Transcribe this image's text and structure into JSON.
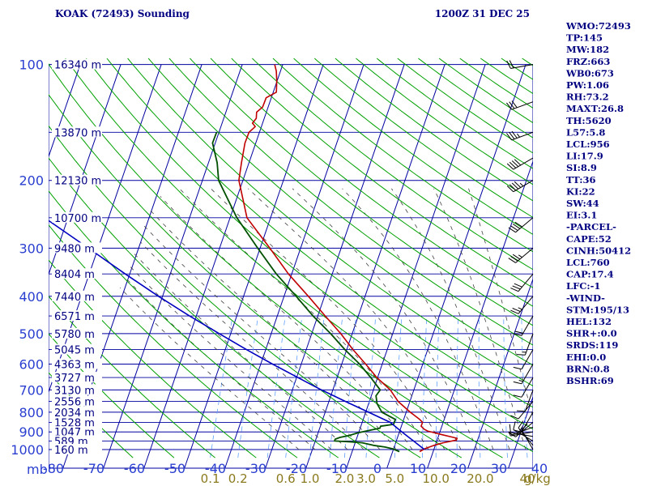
{
  "header": {
    "station": "KOAK (72493) Sounding",
    "time": "1200Z 31 DEC 25"
  },
  "axis": {
    "pressure_unit_label": "mb"
  },
  "colors": {
    "grid": "#0000a0",
    "dry_adiabats": "#00a000",
    "temperature": "#c00000",
    "dewpoint": "#005000",
    "parcel": "#0000c0",
    "moist_adiabats": "#404040",
    "mixing_lines": "#60a0ff",
    "label_blue": "#2a3fd0",
    "label_mix": "#8a7a1e",
    "label_navy": "#000080"
  },
  "chart_data": {
    "type": "line",
    "title": "KOAK (72493) Sounding",
    "subtitle": "1200Z 31 DEC 25",
    "xlabel": "",
    "ylabel": "mb",
    "x_axis": "temperature (°C), skew-T",
    "y_axis": "pressure (mb), log scale",
    "pressure_ticks": [
      100,
      200,
      300,
      400,
      500,
      600,
      700,
      800,
      900,
      1000
    ],
    "temperature_ticks": [
      -80,
      -70,
      -60,
      -50,
      -40,
      -30,
      -20,
      -10,
      0,
      10,
      20,
      30,
      40
    ],
    "temperature_tick_labels": [
      "-80",
      "-70",
      "-60",
      "-50",
      "-40",
      "-30",
      "-20",
      "-10",
      "0",
      "10",
      "20",
      "30",
      "40"
    ],
    "mixing_ratio_unit": "g/kg",
    "mixing_ratio_ticks": [
      {
        "value": 0.1,
        "label": "0.1"
      },
      {
        "value": 0.2,
        "label": "0.2"
      },
      {
        "value": 0.6,
        "label": "0.6"
      },
      {
        "value": 1.0,
        "label": "1.0"
      },
      {
        "value": 2.0,
        "label": "2.0"
      },
      {
        "value": 3.0,
        "label": "3.0"
      },
      {
        "value": 5.0,
        "label": "5.0"
      },
      {
        "value": 10.0,
        "label": "10.0"
      },
      {
        "value": 20.0,
        "label": "20.0"
      },
      {
        "value": 40.0,
        "label": "40"
      }
    ],
    "height_labels": [
      {
        "p": 100,
        "label": "16340 m"
      },
      {
        "p": 150,
        "label": "13870 m"
      },
      {
        "p": 200,
        "label": "12130 m"
      },
      {
        "p": 250,
        "label": "10700 m"
      },
      {
        "p": 300,
        "label": "9480 m"
      },
      {
        "p": 350,
        "label": "8404 m"
      },
      {
        "p": 400,
        "label": "7440 m"
      },
      {
        "p": 450,
        "label": "6571 m"
      },
      {
        "p": 500,
        "label": "5780 m"
      },
      {
        "p": 550,
        "label": "5045 m"
      },
      {
        "p": 600,
        "label": "4363 m"
      },
      {
        "p": 650,
        "label": "3727 m"
      },
      {
        "p": 700,
        "label": "3130 m"
      },
      {
        "p": 750,
        "label": "2556 m"
      },
      {
        "p": 800,
        "label": "2034 m"
      },
      {
        "p": 850,
        "label": "1528 m"
      },
      {
        "p": 900,
        "label": "1047 m"
      },
      {
        "p": 950,
        "label": "589 m"
      },
      {
        "p": 1000,
        "label": "160 m"
      }
    ],
    "series": [
      {
        "key": "temperature",
        "points": [
          [
            1012,
            10
          ],
          [
            995,
            11
          ],
          [
            985,
            12
          ],
          [
            975,
            13
          ],
          [
            960,
            15
          ],
          [
            945,
            18
          ],
          [
            935,
            18
          ],
          [
            925,
            16
          ],
          [
            915,
            14
          ],
          [
            905,
            12
          ],
          [
            895,
            10
          ],
          [
            885,
            9
          ],
          [
            870,
            8
          ],
          [
            850,
            8
          ],
          [
            835,
            7
          ],
          [
            800,
            4
          ],
          [
            750,
            0
          ],
          [
            700,
            -3
          ],
          [
            650,
            -7.5
          ],
          [
            600,
            -11.5
          ],
          [
            550,
            -16
          ],
          [
            500,
            -20.5
          ],
          [
            450,
            -26
          ],
          [
            400,
            -32
          ],
          [
            350,
            -39
          ],
          [
            300,
            -46
          ],
          [
            250,
            -54.5
          ],
          [
            200,
            -60
          ],
          [
            180,
            -61
          ],
          [
            160,
            -62
          ],
          [
            150,
            -62
          ],
          [
            145,
            -61
          ],
          [
            142,
            -62
          ],
          [
            138,
            -61.5
          ],
          [
            133,
            -62
          ],
          [
            129,
            -61
          ],
          [
            122,
            -61
          ],
          [
            118,
            -59
          ],
          [
            110,
            -60
          ],
          [
            104,
            -61
          ],
          [
            100,
            -62
          ]
        ]
      },
      {
        "key": "dewpoint",
        "points": [
          [
            1012,
            5
          ],
          [
            995,
            3
          ],
          [
            985,
            1
          ],
          [
            975,
            -2
          ],
          [
            960,
            -5
          ],
          [
            955,
            -8
          ],
          [
            950,
            -12
          ],
          [
            940,
            -12
          ],
          [
            930,
            -11
          ],
          [
            920,
            -9
          ],
          [
            905,
            -7
          ],
          [
            890,
            -4
          ],
          [
            880,
            -2
          ],
          [
            870,
            -2
          ],
          [
            860,
            1
          ],
          [
            850,
            1
          ],
          [
            835,
            1
          ],
          [
            800,
            -3
          ],
          [
            760,
            -5
          ],
          [
            725,
            -6
          ],
          [
            700,
            -5.5
          ],
          [
            650,
            -9
          ],
          [
            600,
            -13
          ],
          [
            550,
            -18
          ],
          [
            500,
            -23
          ],
          [
            450,
            -29
          ],
          [
            400,
            -35
          ],
          [
            350,
            -42
          ],
          [
            300,
            -49
          ],
          [
            250,
            -57
          ],
          [
            200,
            -65
          ],
          [
            180,
            -67
          ],
          [
            160,
            -70
          ],
          [
            150,
            -70
          ]
        ]
      },
      {
        "key": "parcel",
        "points": [
          [
            1000,
            11
          ],
          [
            950,
            7.5
          ],
          [
            900,
            3.8
          ],
          [
            850,
            0
          ],
          [
            800,
            -6.3
          ],
          [
            750,
            -13
          ],
          [
            700,
            -20
          ],
          [
            650,
            -27
          ],
          [
            600,
            -34.5
          ],
          [
            550,
            -42.3
          ],
          [
            500,
            -50.5
          ],
          [
            450,
            -59.5
          ],
          [
            400,
            -69
          ],
          [
            350,
            -79.3
          ],
          [
            300,
            -90.8
          ],
          [
            250,
            -104.5
          ],
          [
            230,
            -109
          ]
        ]
      }
    ],
    "wind_barbs": [
      {
        "p": 1000,
        "dir": 330,
        "kt": 10
      },
      {
        "p": 975,
        "dir": 320,
        "kt": 15
      },
      {
        "p": 950,
        "dir": 300,
        "kt": 10
      },
      {
        "p": 925,
        "dir": 280,
        "kt": 10
      },
      {
        "p": 900,
        "dir": 260,
        "kt": 5
      },
      {
        "p": 875,
        "dir": 250,
        "kt": 5
      },
      {
        "p": 850,
        "dir": 230,
        "kt": 10
      },
      {
        "p": 800,
        "dir": 210,
        "kt": 10
      },
      {
        "p": 750,
        "dir": 220,
        "kt": 10
      },
      {
        "p": 700,
        "dir": 200,
        "kt": 10
      },
      {
        "p": 650,
        "dir": 210,
        "kt": 10
      },
      {
        "p": 600,
        "dir": 210,
        "kt": 15
      },
      {
        "p": 550,
        "dir": 210,
        "kt": 10
      },
      {
        "p": 500,
        "dir": 200,
        "kt": 15
      },
      {
        "p": 450,
        "dir": 210,
        "kt": 20
      },
      {
        "p": 400,
        "dir": 220,
        "kt": 25
      },
      {
        "p": 350,
        "dir": 220,
        "kt": 30
      },
      {
        "p": 300,
        "dir": 230,
        "kt": 35
      },
      {
        "p": 250,
        "dir": 230,
        "kt": 40
      },
      {
        "p": 200,
        "dir": 240,
        "kt": 45
      },
      {
        "p": 175,
        "dir": 240,
        "kt": 40
      },
      {
        "p": 150,
        "dir": 250,
        "kt": 35
      },
      {
        "p": 125,
        "dir": 250,
        "kt": 30
      },
      {
        "p": 100,
        "dir": 260,
        "kt": 20
      }
    ]
  },
  "indices": [
    "WMO:72493",
    "TP:145",
    "MW:182",
    "FRZ:663",
    "WB0:673",
    "PW:1.06",
    "RH:73.2",
    "MAXT:26.8",
    "TH:5620",
    "L57:5.8",
    "LCL:956",
    "LI:17.9",
    "SI:8.9",
    "TT:36",
    "KI:22",
    "SW:44",
    "EI:3.1",
    "-PARCEL-",
    "CAPE:52",
    "CINH:50412",
    "LCL:760",
    "CAP:17.4",
    "LFC:-1",
    "-WIND-",
    "STM:195/13",
    "HEL:132",
    "SHR+:0.0",
    "SRDS:119",
    "EHI:0.0",
    "BRN:0.8",
    "BSHR:69"
  ]
}
